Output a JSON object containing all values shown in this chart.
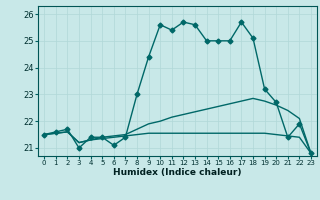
{
  "title": "",
  "xlabel": "Humidex (Indice chaleur)",
  "ylabel": "",
  "background_color": "#c8e8e8",
  "grid_color": "#b0d8d8",
  "line_color": "#006868",
  "xlim": [
    -0.5,
    23.5
  ],
  "ylim": [
    20.7,
    26.3
  ],
  "yticks": [
    21,
    22,
    23,
    24,
    25,
    26
  ],
  "xticks": [
    0,
    1,
    2,
    3,
    4,
    5,
    6,
    7,
    8,
    9,
    10,
    11,
    12,
    13,
    14,
    15,
    16,
    17,
    18,
    19,
    20,
    21,
    22,
    23
  ],
  "series1_x": [
    0,
    1,
    2,
    3,
    4,
    5,
    6,
    7,
    8,
    9,
    10,
    11,
    12,
    13,
    14,
    15,
    16,
    17,
    18,
    19,
    20,
    21,
    22,
    23
  ],
  "series1_y": [
    21.5,
    21.6,
    21.7,
    21.0,
    21.4,
    21.4,
    21.1,
    21.4,
    23.0,
    24.4,
    25.6,
    25.4,
    25.7,
    25.6,
    25.0,
    25.0,
    25.0,
    25.7,
    25.1,
    23.2,
    22.7,
    21.4,
    21.9,
    20.8
  ],
  "series2_x": [
    0,
    1,
    2,
    3,
    4,
    5,
    6,
    7,
    8,
    9,
    10,
    11,
    12,
    13,
    14,
    15,
    16,
    17,
    18,
    19,
    20,
    21,
    22,
    23
  ],
  "series2_y": [
    21.5,
    21.55,
    21.6,
    21.2,
    21.3,
    21.4,
    21.45,
    21.5,
    21.7,
    21.9,
    22.0,
    22.15,
    22.25,
    22.35,
    22.45,
    22.55,
    22.65,
    22.75,
    22.85,
    22.75,
    22.6,
    22.4,
    22.1,
    20.8
  ],
  "series3_x": [
    0,
    1,
    2,
    3,
    4,
    5,
    6,
    7,
    8,
    9,
    10,
    11,
    12,
    13,
    14,
    15,
    16,
    17,
    18,
    19,
    20,
    21,
    22,
    23
  ],
  "series3_y": [
    21.5,
    21.55,
    21.6,
    21.2,
    21.3,
    21.35,
    21.4,
    21.45,
    21.5,
    21.55,
    21.55,
    21.55,
    21.55,
    21.55,
    21.55,
    21.55,
    21.55,
    21.55,
    21.55,
    21.55,
    21.5,
    21.45,
    21.4,
    20.8
  ],
  "marker": "D",
  "markersize": 2.5,
  "linewidth": 1.0,
  "tick_fontsize": 5.5,
  "xlabel_fontsize": 6.5
}
